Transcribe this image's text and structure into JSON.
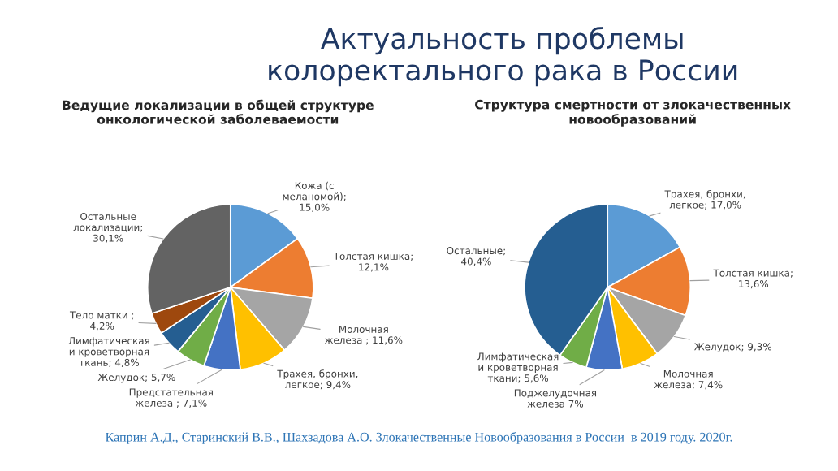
{
  "chart_data": [
    {
      "type": "pie",
      "title": "Ведущие локализации в общей структуре\nонкологической заболеваемости",
      "categories": [
        "Кожа (с\nмеланомой);\n15,0%",
        "Толстая кишка;\n12,1%",
        "Молочная\nжелеза ; 11,6%",
        "Трахея, бронхи,\nлегкое; 9,4%",
        "Предстательная\nжелеза ; 7,1%",
        "Желудок; 5,7%",
        "Лимфатическая\nи кроветворная\nткань; 4,8%",
        "Тело матки ;\n4,2%",
        "Остальные\nлокализации;\n30,1%"
      ],
      "values": [
        15.0,
        12.1,
        11.6,
        9.4,
        7.1,
        5.7,
        4.8,
        4.2,
        30.1
      ],
      "colors": [
        "#5b9bd5",
        "#ed7d31",
        "#a5a5a5",
        "#ffc000",
        "#4472c4",
        "#70ad47",
        "#255e91",
        "#9e480e",
        "#636363"
      ],
      "annotations": [
        "Актуальность проблемы\nколоректального рака в России",
        "Каприн А.Д., Старинский В.В., Шахзадова А.О. Злокачественные Новообразования в России  в 2019 году. 2020г."
      ]
    },
    {
      "type": "pie",
      "title": "Структура смертности от злокачественных\nновообразований",
      "categories": [
        "Трахея, бронхи,\nлегкое; 17,0%",
        "Толстая кишка;\n13,6%",
        "Желудок; 9,3%",
        "Молочная\nжелеза; 7,4%",
        "Поджелудочная\nжелеза 7%",
        "Лимфатическая\nи кроветворная\nткани; 5,6%",
        "Остальные;\n40,4%"
      ],
      "values": [
        17.0,
        13.6,
        9.3,
        7.4,
        7,
        5.6,
        40.4
      ],
      "colors": [
        "#5b9bd5",
        "#ed7d31",
        "#a5a5a5",
        "#ffc000",
        "#4472c4",
        "#70ad47",
        "#255e91"
      ]
    }
  ]
}
